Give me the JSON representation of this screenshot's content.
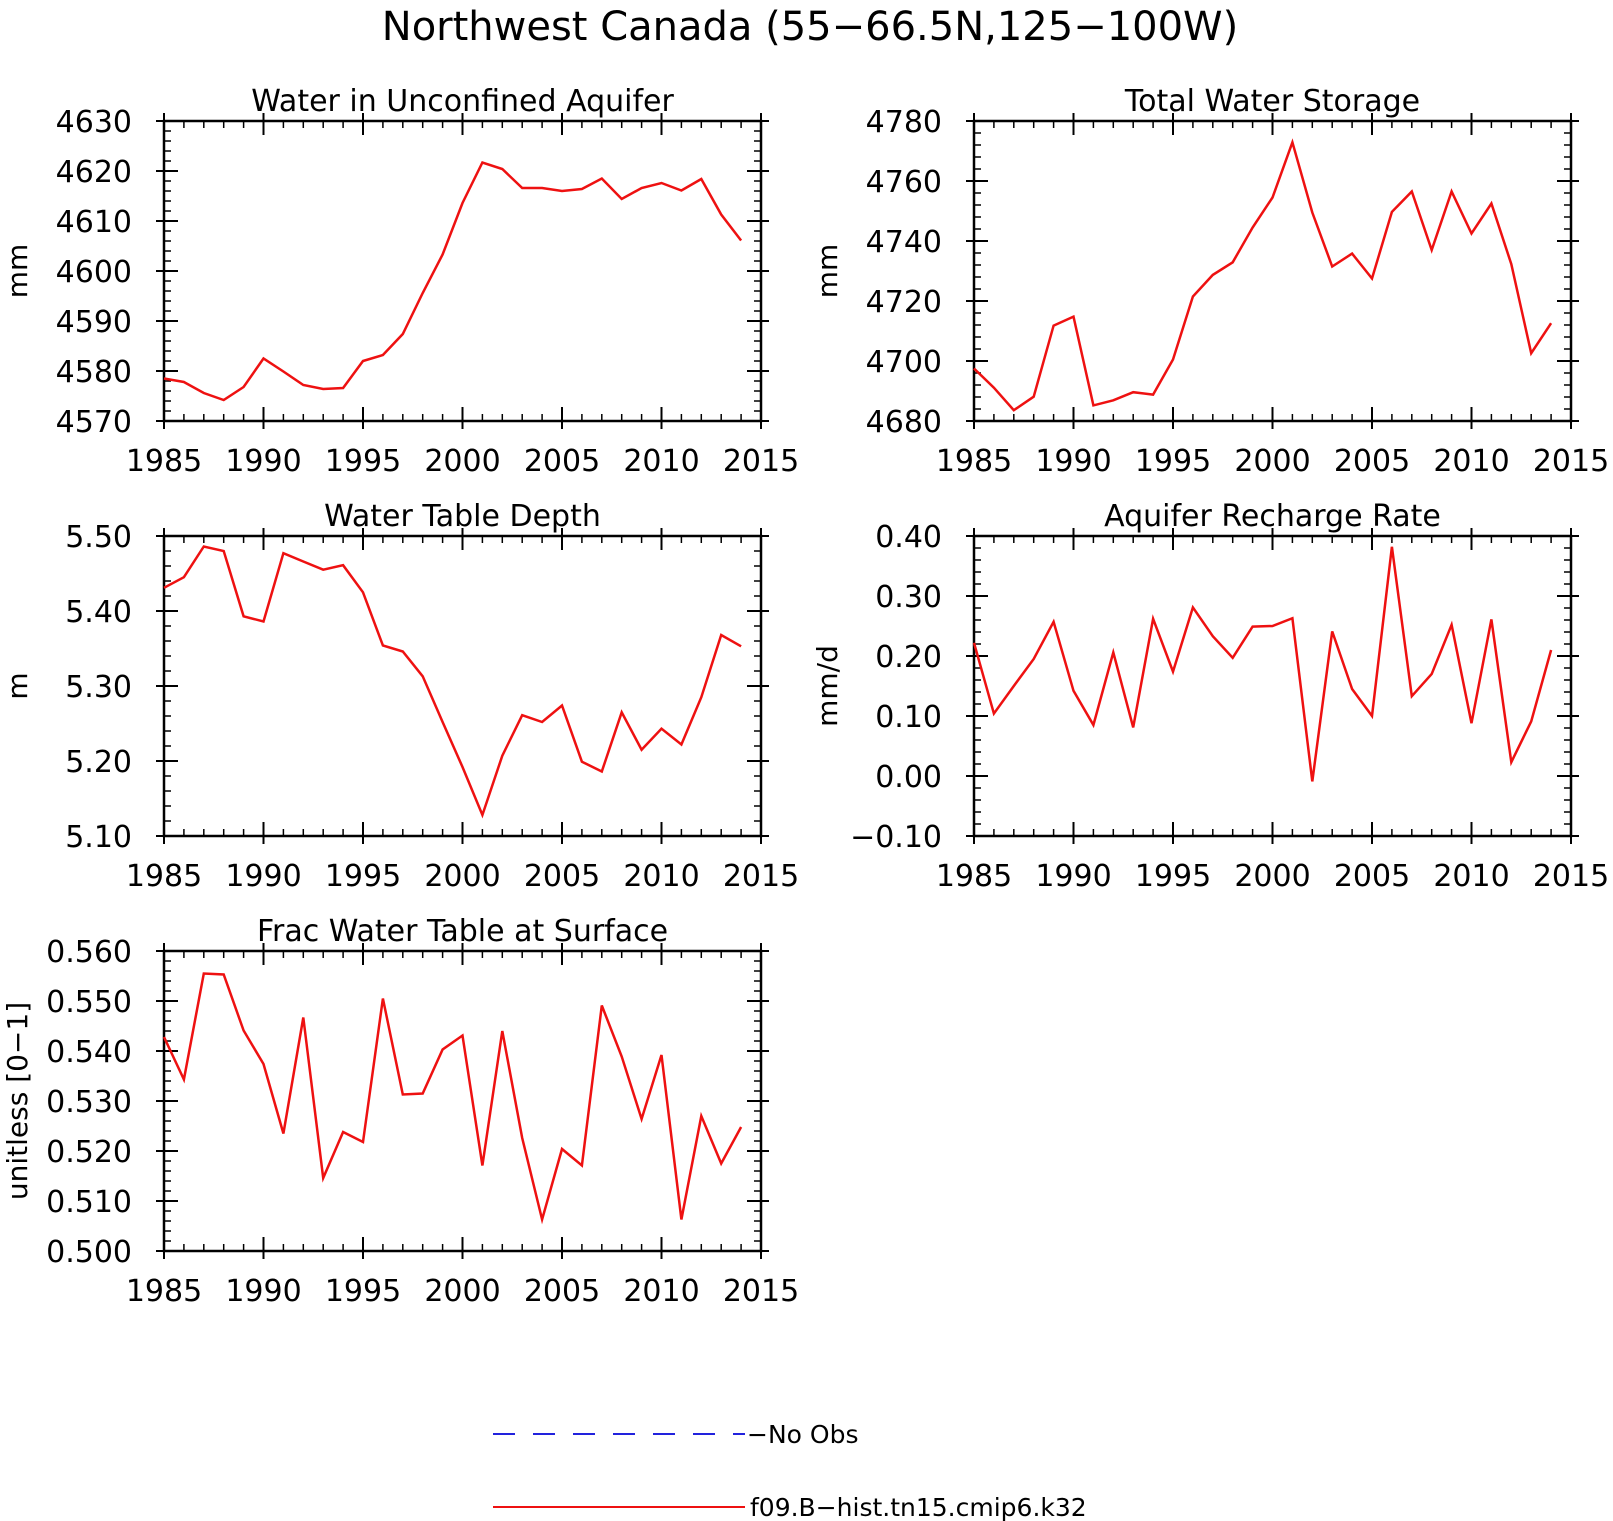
{
  "figure": {
    "title": "Northwest Canada (55−66.5N,125−100W)",
    "legend": [
      {
        "label": "−No Obs",
        "color": "#2222dd",
        "dash": true
      },
      {
        "label": "f09.B−hist.tn15.cmip6.k32",
        "color": "#ee1111",
        "dash": false
      }
    ]
  },
  "chart_data": [
    {
      "type": "line",
      "title": "Water in Unconfined Aquifer",
      "ylabel": "mm",
      "xlim": [
        1985,
        2015
      ],
      "ylim": [
        4570,
        4630
      ],
      "xticks": [
        1985,
        1990,
        1995,
        2000,
        2005,
        2010,
        2015
      ],
      "yticks": [
        4570,
        4580,
        4590,
        4600,
        4610,
        4620,
        4630
      ],
      "ytick_labels": [
        "4570",
        "4580",
        "4590",
        "4600",
        "4610",
        "4620",
        "4630"
      ],
      "series": [
        {
          "color": "#ee1111",
          "x": [
            1985,
            1986,
            1987,
            1988,
            1989,
            1990,
            1991,
            1992,
            1993,
            1994,
            1995,
            1996,
            1997,
            1998,
            1999,
            2000,
            2001,
            2002,
            2003,
            2004,
            2005,
            2006,
            2007,
            2008,
            2009,
            2010,
            2011,
            2012,
            2013,
            2014
          ],
          "y": [
            4578.5,
            4577.8,
            4575.6,
            4574.2,
            4576.8,
            4582.5,
            4579.9,
            4577.2,
            4576.4,
            4576.6,
            4582.0,
            4583.2,
            4587.4,
            4595.6,
            4603.3,
            4613.6,
            4621.7,
            4620.4,
            4616.6,
            4616.6,
            4616.0,
            4616.4,
            4618.5,
            4614.4,
            4616.6,
            4617.6,
            4616.1,
            4618.4,
            4611.3,
            4606.1
          ]
        }
      ]
    },
    {
      "type": "line",
      "title": "Total Water Storage",
      "ylabel": "mm",
      "xlim": [
        1985,
        2015
      ],
      "ylim": [
        4680,
        4780
      ],
      "xticks": [
        1985,
        1990,
        1995,
        2000,
        2005,
        2010,
        2015
      ],
      "yticks": [
        4680,
        4700,
        4720,
        4740,
        4760,
        4780
      ],
      "ytick_labels": [
        "4680",
        "4700",
        "4720",
        "4740",
        "4760",
        "4780"
      ],
      "series": [
        {
          "color": "#ee1111",
          "x": [
            1985,
            1986,
            1987,
            1988,
            1989,
            1990,
            1991,
            1992,
            1993,
            1994,
            1995,
            1996,
            1997,
            1998,
            1999,
            2000,
            2001,
            2002,
            2003,
            2004,
            2005,
            2006,
            2007,
            2008,
            2009,
            2010,
            2011,
            2012,
            2013,
            2014
          ],
          "y": [
            4697.5,
            4691.1,
            4683.6,
            4688.1,
            4711.8,
            4714.8,
            4685.2,
            4686.9,
            4689.6,
            4688.8,
            4700.5,
            4721.5,
            4728.7,
            4732.9,
            4744.5,
            4754.5,
            4772.9,
            4749.5,
            4731.5,
            4735.8,
            4727.5,
            4749.7,
            4756.5,
            4737.0,
            4756.5,
            4742.5,
            4752.5,
            4732.3,
            4702.6,
            4712.6
          ]
        }
      ]
    },
    {
      "type": "line",
      "title": "Water Table Depth",
      "ylabel": "m",
      "xlim": [
        1985,
        2015
      ],
      "ylim": [
        5.1,
        5.5
      ],
      "xticks": [
        1985,
        1990,
        1995,
        2000,
        2005,
        2010,
        2015
      ],
      "yticks": [
        5.1,
        5.2,
        5.3,
        5.4,
        5.5
      ],
      "ytick_labels": [
        "5.10",
        "5.20",
        "5.30",
        "5.40",
        "5.50"
      ],
      "series": [
        {
          "color": "#ee1111",
          "x": [
            1985,
            1986,
            1987,
            1988,
            1989,
            1990,
            1991,
            1992,
            1993,
            1994,
            1995,
            1996,
            1997,
            1998,
            1999,
            2000,
            2001,
            2002,
            2003,
            2004,
            2005,
            2006,
            2007,
            2008,
            2009,
            2010,
            2011,
            2012,
            2013,
            2014
          ],
          "y": [
            5.431,
            5.445,
            5.486,
            5.48,
            5.393,
            5.386,
            5.477,
            5.466,
            5.455,
            5.461,
            5.425,
            5.354,
            5.346,
            5.313,
            5.252,
            5.192,
            5.128,
            5.207,
            5.261,
            5.252,
            5.274,
            5.199,
            5.186,
            5.265,
            5.215,
            5.243,
            5.222,
            5.285,
            5.368,
            5.353
          ]
        }
      ]
    },
    {
      "type": "line",
      "title": "Aquifer Recharge Rate",
      "ylabel": "mm/d",
      "xlim": [
        1985,
        2015
      ],
      "ylim": [
        -0.1,
        0.4
      ],
      "xticks": [
        1985,
        1990,
        1995,
        2000,
        2005,
        2010,
        2015
      ],
      "yticks": [
        -0.1,
        0.0,
        0.1,
        0.2,
        0.3,
        0.4
      ],
      "ytick_labels": [
        "−0.10",
        "0.00",
        "0.10",
        "0.20",
        "0.30",
        "0.40"
      ],
      "series": [
        {
          "color": "#ee1111",
          "x": [
            1985,
            1986,
            1987,
            1988,
            1989,
            1990,
            1991,
            1992,
            1993,
            1994,
            1995,
            1996,
            1997,
            1998,
            1999,
            2000,
            2001,
            2002,
            2003,
            2004,
            2005,
            2006,
            2007,
            2008,
            2009,
            2010,
            2011,
            2012,
            2013,
            2014
          ],
          "y": [
            0.222,
            0.104,
            0.15,
            0.195,
            0.257,
            0.142,
            0.085,
            0.206,
            0.081,
            0.262,
            0.174,
            0.281,
            0.233,
            0.197,
            0.249,
            0.25,
            0.263,
            -0.009,
            0.241,
            0.145,
            0.1,
            0.382,
            0.133,
            0.17,
            0.252,
            0.088,
            0.261,
            0.023,
            0.091,
            0.21
          ]
        }
      ]
    },
    {
      "type": "line",
      "title": "Frac Water Table at Surface",
      "ylabel": "unitless [0−1]",
      "xlim": [
        1985,
        2015
      ],
      "ylim": [
        0.5,
        0.56
      ],
      "xticks": [
        1985,
        1990,
        1995,
        2000,
        2005,
        2010,
        2015
      ],
      "yticks": [
        0.5,
        0.51,
        0.52,
        0.53,
        0.54,
        0.55,
        0.56
      ],
      "ytick_labels": [
        "0.500",
        "0.510",
        "0.520",
        "0.530",
        "0.540",
        "0.550",
        "0.560"
      ],
      "series": [
        {
          "color": "#ee1111",
          "x": [
            1985,
            1986,
            1987,
            1988,
            1989,
            1990,
            1991,
            1992,
            1993,
            1994,
            1995,
            1996,
            1997,
            1998,
            1999,
            2000,
            2001,
            2002,
            2003,
            2004,
            2005,
            2006,
            2007,
            2008,
            2009,
            2010,
            2011,
            2012,
            2013,
            2014
          ],
          "y": [
            0.5428,
            0.5343,
            0.5555,
            0.5553,
            0.5441,
            0.5374,
            0.5235,
            0.5467,
            0.5146,
            0.5238,
            0.5218,
            0.5505,
            0.5313,
            0.5315,
            0.5403,
            0.5431,
            0.5171,
            0.544,
            0.5226,
            0.5063,
            0.5204,
            0.5171,
            0.5491,
            0.5389,
            0.5264,
            0.5392,
            0.5063,
            0.527,
            0.5175,
            0.5248
          ]
        }
      ]
    }
  ]
}
